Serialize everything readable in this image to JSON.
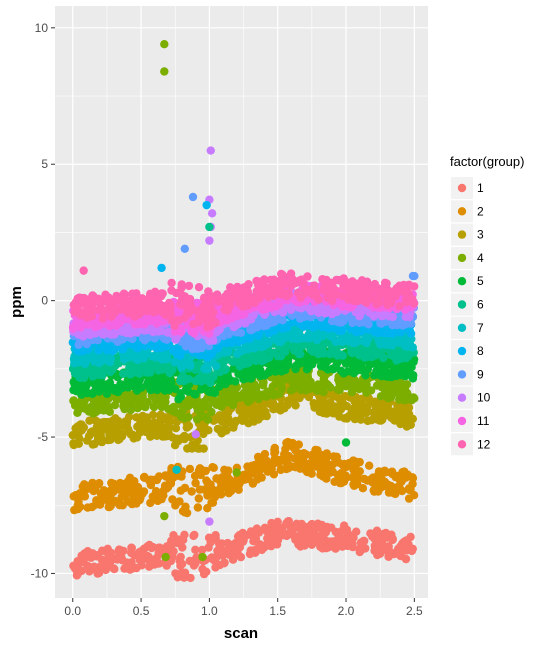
{
  "chart_data": {
    "type": "scatter",
    "title": "",
    "xlabel": "scan",
    "ylabel": "ppm",
    "xlim": [
      -0.13,
      2.6
    ],
    "ylim": [
      -10.9,
      10.8
    ],
    "xticks": [
      0.0,
      0.5,
      1.0,
      1.5,
      2.0,
      2.5
    ],
    "xtick_labels": [
      "0.0",
      "0.5",
      "1.0",
      "1.5",
      "2.0",
      "2.5"
    ],
    "yticks": [
      -10,
      -5,
      0,
      5,
      10
    ],
    "ytick_labels": [
      "-10",
      "-5",
      "0",
      "5",
      "10"
    ],
    "grid": true,
    "legend": {
      "title": "factor(group)",
      "position": "right"
    },
    "series": [
      {
        "name": "1",
        "color": "#F8766D",
        "baseline": [
          [
            0.0,
            -9.7
          ],
          [
            0.6,
            -9.3
          ],
          [
            1.0,
            -9.4
          ],
          [
            1.5,
            -8.5
          ],
          [
            2.0,
            -8.7
          ],
          [
            2.5,
            -9.1
          ]
        ],
        "spread": 0.45
      },
      {
        "name": "2",
        "color": "#DE8C00",
        "baseline": [
          [
            0.0,
            -7.2
          ],
          [
            0.6,
            -6.9
          ],
          [
            1.0,
            -6.9
          ],
          [
            1.6,
            -5.6
          ],
          [
            2.0,
            -6.3
          ],
          [
            2.5,
            -6.8
          ]
        ],
        "spread": 0.5
      },
      {
        "name": "3",
        "color": "#B79F00",
        "baseline": [
          [
            0.0,
            -4.9
          ],
          [
            0.6,
            -4.6
          ],
          [
            1.0,
            -4.7
          ],
          [
            1.6,
            -3.4
          ],
          [
            2.0,
            -3.9
          ],
          [
            2.5,
            -4.2
          ]
        ],
        "spread": 0.45
      },
      {
        "name": "4",
        "color": "#7CAE00",
        "baseline": [
          [
            0.0,
            -3.8
          ],
          [
            0.6,
            -3.6
          ],
          [
            1.0,
            -3.7
          ],
          [
            1.6,
            -2.9
          ],
          [
            2.0,
            -3.0
          ],
          [
            2.5,
            -3.3
          ]
        ],
        "spread": 0.4
      },
      {
        "name": "5",
        "color": "#00BA38",
        "baseline": [
          [
            0.0,
            -3.1
          ],
          [
            0.6,
            -2.9
          ],
          [
            1.0,
            -2.9
          ],
          [
            1.6,
            -2.1
          ],
          [
            2.0,
            -2.3
          ],
          [
            2.5,
            -2.5
          ]
        ],
        "spread": 0.4
      },
      {
        "name": "6",
        "color": "#00C08B",
        "baseline": [
          [
            0.0,
            -2.5
          ],
          [
            0.6,
            -2.3
          ],
          [
            1.0,
            -2.4
          ],
          [
            1.6,
            -1.6
          ],
          [
            2.0,
            -1.7
          ],
          [
            2.5,
            -1.9
          ]
        ],
        "spread": 0.35
      },
      {
        "name": "7",
        "color": "#00BFC4",
        "baseline": [
          [
            0.0,
            -2.0
          ],
          [
            0.6,
            -1.8
          ],
          [
            1.0,
            -1.9
          ],
          [
            1.6,
            -1.1
          ],
          [
            2.0,
            -1.2
          ],
          [
            2.5,
            -1.4
          ]
        ],
        "spread": 0.35
      },
      {
        "name": "8",
        "color": "#00B4F0",
        "baseline": [
          [
            0.0,
            -1.6
          ],
          [
            0.6,
            -1.4
          ],
          [
            1.0,
            -1.5
          ],
          [
            1.6,
            -0.6
          ],
          [
            2.0,
            -0.8
          ],
          [
            2.5,
            -0.9
          ]
        ],
        "spread": 0.35
      },
      {
        "name": "9",
        "color": "#619CFF",
        "baseline": [
          [
            0.0,
            -1.3
          ],
          [
            0.6,
            -1.1
          ],
          [
            1.0,
            -1.2
          ],
          [
            1.6,
            -0.3
          ],
          [
            2.0,
            -0.5
          ],
          [
            2.5,
            -0.6
          ]
        ],
        "spread": 0.35
      },
      {
        "name": "10",
        "color": "#C77CFF",
        "baseline": [
          [
            0.0,
            -1.0
          ],
          [
            0.6,
            -0.8
          ],
          [
            1.0,
            -0.9
          ],
          [
            1.6,
            0.0
          ],
          [
            2.0,
            -0.2
          ],
          [
            2.5,
            -0.3
          ]
        ],
        "spread": 0.35
      },
      {
        "name": "11",
        "color": "#F564E3",
        "baseline": [
          [
            0.0,
            -0.7
          ],
          [
            0.6,
            -0.5
          ],
          [
            1.0,
            -0.6
          ],
          [
            1.6,
            0.3
          ],
          [
            2.0,
            0.1
          ],
          [
            2.5,
            0.0
          ]
        ],
        "spread": 0.35
      },
      {
        "name": "12",
        "color": "#FF64B0",
        "baseline": [
          [
            0.0,
            -0.3
          ],
          [
            0.6,
            -0.1
          ],
          [
            1.0,
            -0.2
          ],
          [
            1.5,
            0.6
          ],
          [
            2.0,
            0.4
          ],
          [
            2.5,
            0.2
          ]
        ],
        "spread": 0.45
      }
    ],
    "outliers": [
      {
        "series": "4",
        "x": 0.67,
        "y": 9.4
      },
      {
        "series": "4",
        "x": 0.67,
        "y": 8.4
      },
      {
        "series": "10",
        "x": 1.01,
        "y": 5.5
      },
      {
        "series": "10",
        "x": 1.0,
        "y": 3.7
      },
      {
        "series": "10",
        "x": 1.02,
        "y": 3.2
      },
      {
        "series": "10",
        "x": 1.01,
        "y": 2.7
      },
      {
        "series": "10",
        "x": 1.0,
        "y": 2.2
      },
      {
        "series": "9",
        "x": 0.88,
        "y": 3.8
      },
      {
        "series": "8",
        "x": 0.98,
        "y": 3.5
      },
      {
        "series": "6",
        "x": 1.0,
        "y": 2.7
      },
      {
        "series": "9",
        "x": 0.82,
        "y": 1.9
      },
      {
        "series": "8",
        "x": 0.65,
        "y": 1.2
      },
      {
        "series": "9",
        "x": 2.49,
        "y": 0.9
      },
      {
        "series": "9",
        "x": 2.5,
        "y": 0.9
      },
      {
        "series": "12",
        "x": 0.08,
        "y": 1.1
      },
      {
        "series": "10",
        "x": 1.0,
        "y": -8.1
      },
      {
        "series": "4",
        "x": 0.68,
        "y": -9.4
      },
      {
        "series": "4",
        "x": 0.95,
        "y": -9.4
      },
      {
        "series": "4",
        "x": 0.67,
        "y": -7.9
      },
      {
        "series": "7",
        "x": 0.76,
        "y": -6.2
      },
      {
        "series": "4",
        "x": 1.2,
        "y": -6.3
      },
      {
        "series": "5",
        "x": 2.0,
        "y": -5.2
      },
      {
        "series": "10",
        "x": 0.9,
        "y": -4.9
      }
    ]
  }
}
